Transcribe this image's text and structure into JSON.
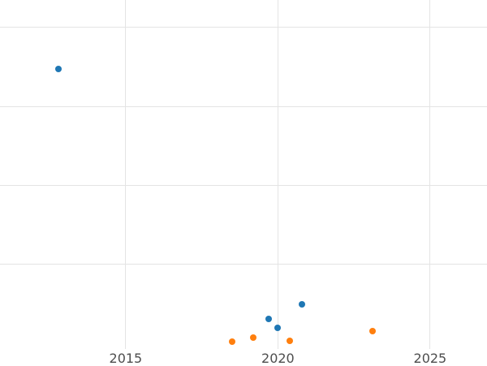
{
  "chart_data": {
    "type": "scatter",
    "title": "",
    "xlabel": "",
    "ylabel": "",
    "x_ticks": [
      2015,
      2020,
      2025
    ],
    "xlim": [
      2010.87,
      2026.87
    ],
    "ylim": [
      -0.08,
      4.35
    ],
    "y_gridlines": [
      1,
      2,
      3,
      4
    ],
    "grid": true,
    "legend": false,
    "series": [
      {
        "name": "blue",
        "color": "#1f77b4",
        "points": [
          {
            "x": 2012.8,
            "y": 3.47
          },
          {
            "x": 2019.7,
            "y": 0.3
          },
          {
            "x": 2020.0,
            "y": 0.19
          },
          {
            "x": 2020.8,
            "y": 0.49
          }
        ]
      },
      {
        "name": "orange",
        "color": "#ff7f0e",
        "points": [
          {
            "x": 2018.5,
            "y": 0.01
          },
          {
            "x": 2019.2,
            "y": 0.06
          },
          {
            "x": 2020.4,
            "y": 0.02
          },
          {
            "x": 2023.1,
            "y": 0.15
          }
        ]
      }
    ]
  },
  "colors": {
    "background": "#ffffff",
    "gridline": "#e4e4e4",
    "tick_label": "#4d4d4d"
  }
}
